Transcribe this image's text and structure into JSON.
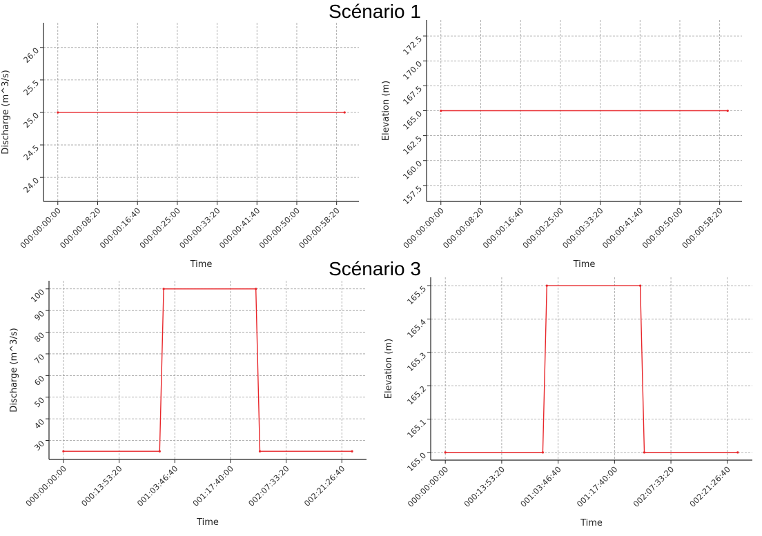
{
  "titles": [
    "Scénario 1",
    "Scénario 3"
  ],
  "line_color": "#e8262a",
  "chart_data": [
    {
      "type": "line",
      "group": "Scénario 1",
      "xlabel": "Time",
      "ylabel": "Discharge (m^3/s)",
      "x": [
        0,
        3600
      ],
      "y": [
        25,
        25
      ],
      "xlim": [
        -180,
        3780
      ],
      "ylim": [
        23.63,
        26.38
      ],
      "xticks": [
        0,
        500,
        1000,
        1500,
        2000,
        2500,
        3000,
        3500
      ],
      "xticklabels": [
        "000:00:00:00",
        "000:00:08:20",
        "000:00:16:40",
        "000:00:25:00",
        "000:00:33:20",
        "000:00:41:40",
        "000:00:50:00",
        "000:00:58:20"
      ],
      "yticks": [
        24.0,
        24.5,
        25.0,
        25.5,
        26.0
      ],
      "yticklabels": [
        "24.0",
        "24.5",
        "25.0",
        "25.5",
        "26.0"
      ],
      "grid": true
    },
    {
      "type": "line",
      "group": "Scénario 1",
      "xlabel": "Time",
      "ylabel": "Elevation (m)",
      "x": [
        0,
        3600
      ],
      "y": [
        165,
        165
      ],
      "xlim": [
        -180,
        3780
      ],
      "ylim": [
        155.9,
        174.1
      ],
      "xticks": [
        0,
        500,
        1000,
        1500,
        2000,
        2500,
        3000,
        3500
      ],
      "xticklabels": [
        "000:00:00:00",
        "000:00:08:20",
        "000:00:16:40",
        "000:00:25:00",
        "000:00:33:20",
        "000:00:41:40",
        "000:00:50:00",
        "000:00:58:20"
      ],
      "yticks": [
        157.5,
        160.0,
        162.5,
        165.0,
        167.5,
        170.0,
        172.5
      ],
      "yticklabels": [
        "157.5",
        "160.0",
        "162.5",
        "165.0",
        "167.5",
        "170.0",
        "172.5"
      ],
      "grid": true
    },
    {
      "type": "line",
      "group": "Scénario 3",
      "xlabel": "Time",
      "ylabel": "Discharge (m^3/s)",
      "x": [
        0,
        86400,
        90000,
        172800,
        176400,
        259200
      ],
      "y": [
        25,
        25,
        100,
        100,
        25,
        25
      ],
      "xlim": [
        -12960,
        272160
      ],
      "ylim": [
        21.25,
        103.75
      ],
      "xticks": [
        0,
        50000,
        100000,
        150000,
        200000,
        250000
      ],
      "xticklabels": [
        "000:00:00:00",
        "000:13:53:20",
        "001:03:46:40",
        "001:17:40:00",
        "002:07:33:20",
        "002:21:26:40"
      ],
      "yticks": [
        30,
        40,
        50,
        60,
        70,
        80,
        90,
        100
      ],
      "yticklabels": [
        "30",
        "40",
        "50",
        "60",
        "70",
        "80",
        "90",
        "100"
      ],
      "grid": true
    },
    {
      "type": "line",
      "group": "Scénario 3",
      "xlabel": "Time",
      "ylabel": "Elevation (m)",
      "x": [
        0,
        86400,
        90000,
        172800,
        176400,
        259200
      ],
      "y": [
        165.0,
        165.0,
        165.5,
        165.5,
        165.0,
        165.0
      ],
      "xlim": [
        -12960,
        272160
      ],
      "ylim": [
        164.977,
        165.525
      ],
      "xticks": [
        0,
        50000,
        100000,
        150000,
        200000,
        250000
      ],
      "xticklabels": [
        "000:00:00:00",
        "000:13:53:20",
        "001:03:46:40",
        "001:17:40:00",
        "002:07:33:20",
        "002:21:26:40"
      ],
      "yticks": [
        165.0,
        165.1,
        165.2,
        165.3,
        165.4,
        165.5
      ],
      "yticklabels": [
        "165.0",
        "165.1",
        "165.2",
        "165.3",
        "165.4",
        "165.5"
      ],
      "grid": true
    }
  ]
}
